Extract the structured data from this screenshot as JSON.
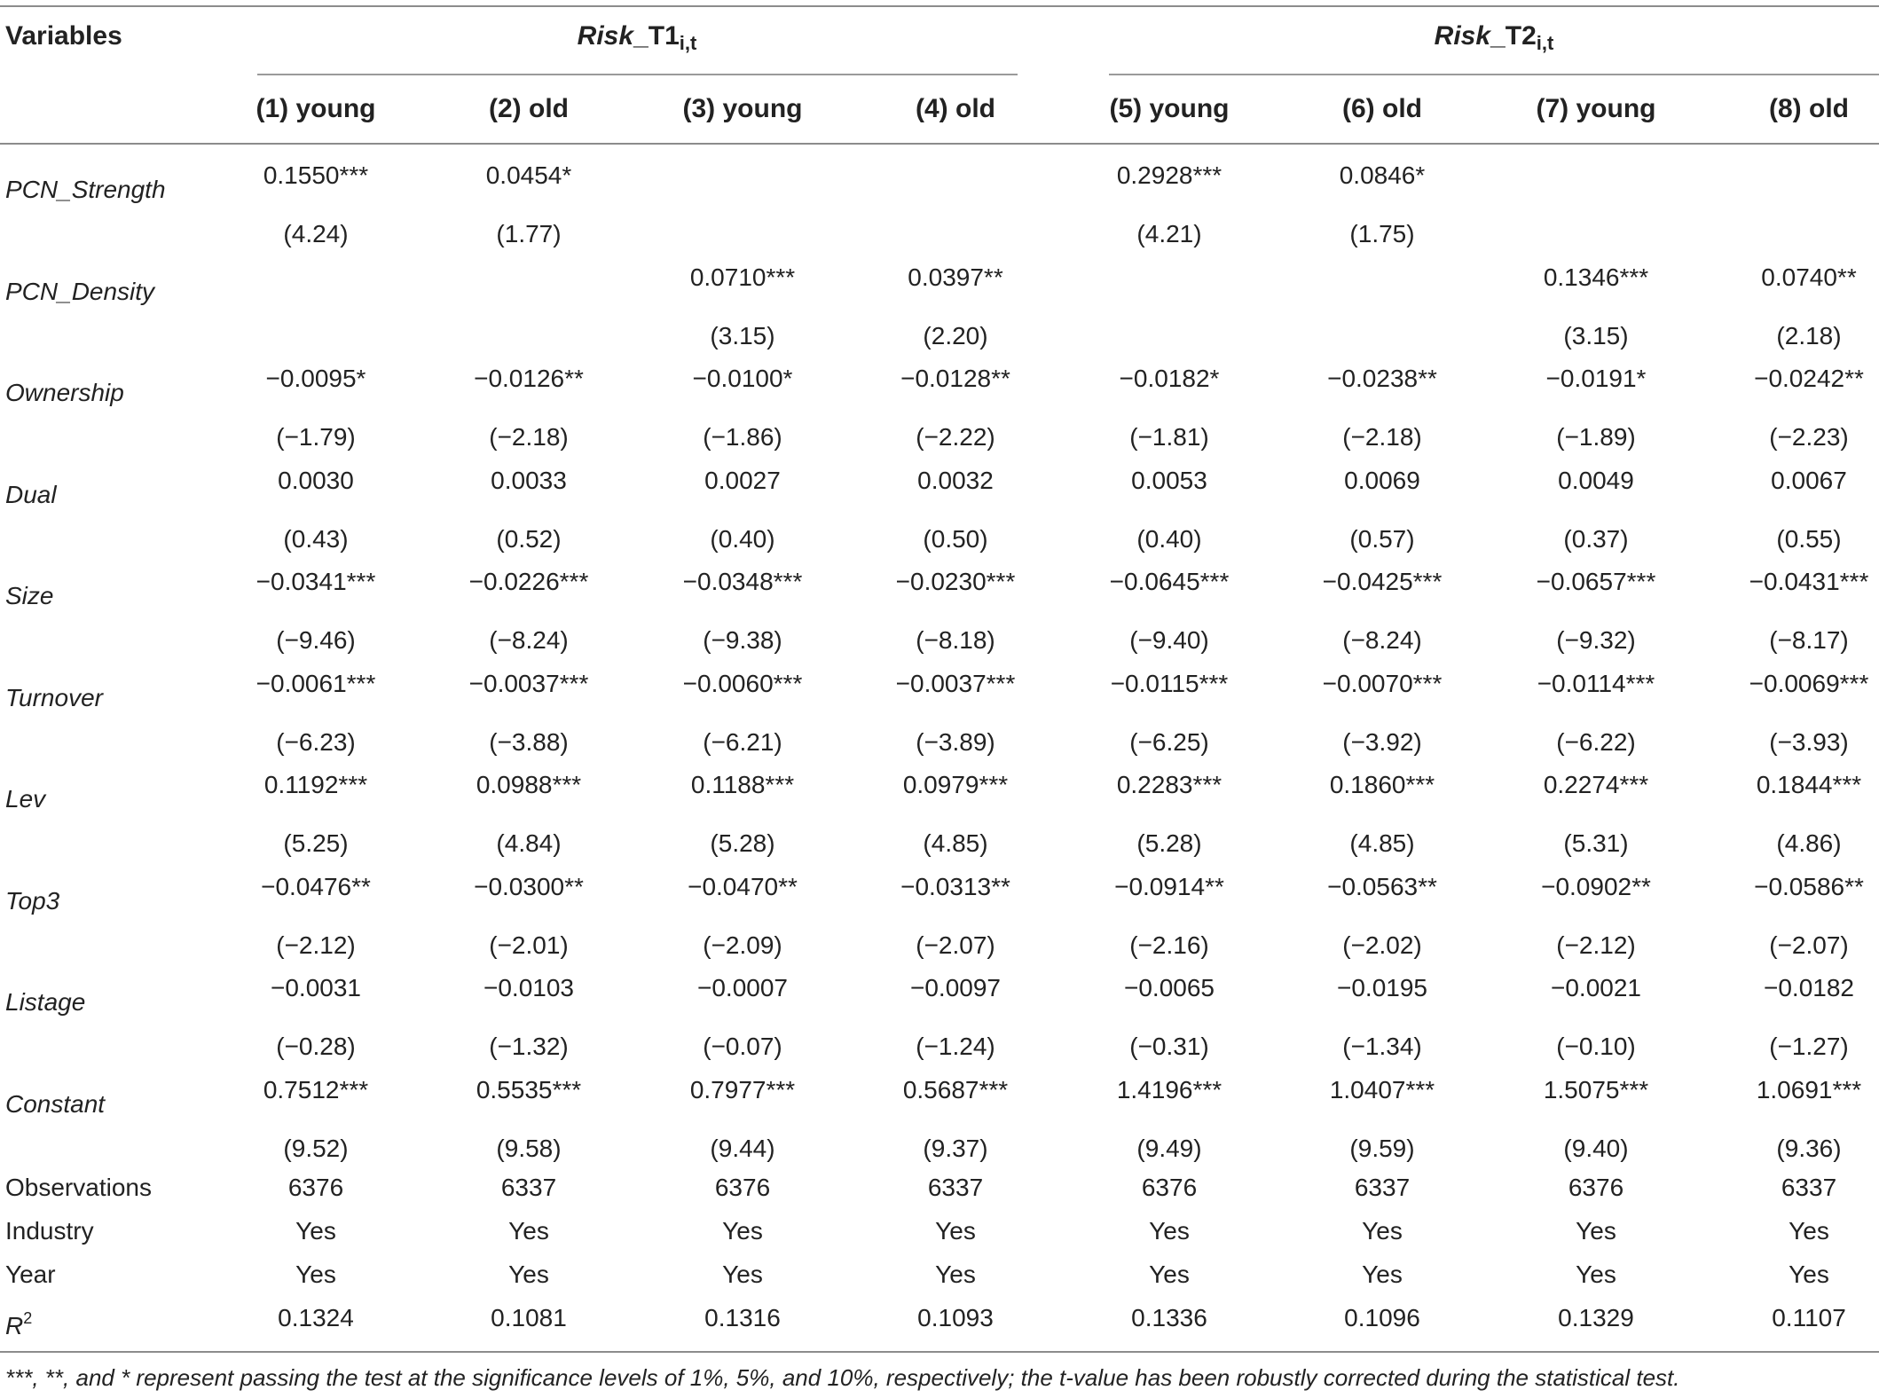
{
  "header": {
    "variables_label": "Variables",
    "group1": {
      "prefix": "Risk",
      "suffix": "_T1",
      "subscript": "i,t"
    },
    "group2": {
      "prefix": "Risk",
      "suffix": "_T2",
      "subscript": "i,t"
    },
    "columns": [
      "(1) young",
      "(2) old",
      "(3) young",
      "(4) old",
      "(5) young",
      "(6) old",
      "(7) young",
      "(8) old"
    ]
  },
  "rows": [
    {
      "label": "PCN_Strength",
      "coef": [
        "0.1550***",
        "0.0454*",
        "",
        "",
        "0.2928***",
        "0.0846*",
        "",
        ""
      ],
      "tval": [
        "(4.24)",
        "(1.77)",
        "",
        "",
        "(4.21)",
        "(1.75)",
        "",
        ""
      ]
    },
    {
      "label": "PCN_Density",
      "coef": [
        "",
        "",
        "0.0710***",
        "0.0397**",
        "",
        "",
        "0.1346***",
        "0.0740**"
      ],
      "tval": [
        "",
        "",
        "(3.15)",
        "(2.20)",
        "",
        "",
        "(3.15)",
        "(2.18)"
      ]
    },
    {
      "label": "Ownership",
      "coef": [
        "−0.0095*",
        "−0.0126**",
        "−0.0100*",
        "−0.0128**",
        "−0.0182*",
        "−0.0238**",
        "−0.0191*",
        "−0.0242**"
      ],
      "tval": [
        "(−1.79)",
        "(−2.18)",
        "(−1.86)",
        "(−2.22)",
        "(−1.81)",
        "(−2.18)",
        "(−1.89)",
        "(−2.23)"
      ]
    },
    {
      "label": "Dual",
      "coef": [
        "0.0030",
        "0.0033",
        "0.0027",
        "0.0032",
        "0.0053",
        "0.0069",
        "0.0049",
        "0.0067"
      ],
      "tval": [
        "(0.43)",
        "(0.52)",
        "(0.40)",
        "(0.50)",
        "(0.40)",
        "(0.57)",
        "(0.37)",
        "(0.55)"
      ]
    },
    {
      "label": "Size",
      "coef": [
        "−0.0341***",
        "−0.0226***",
        "−0.0348***",
        "−0.0230***",
        "−0.0645***",
        "−0.0425***",
        "−0.0657***",
        "−0.0431***"
      ],
      "tval": [
        "(−9.46)",
        "(−8.24)",
        "(−9.38)",
        "(−8.18)",
        "(−9.40)",
        "(−8.24)",
        "(−9.32)",
        "(−8.17)"
      ]
    },
    {
      "label": "Turnover",
      "coef": [
        "−0.0061***",
        "−0.0037***",
        "−0.0060***",
        "−0.0037***",
        "−0.0115***",
        "−0.0070***",
        "−0.0114***",
        "−0.0069***"
      ],
      "tval": [
        "(−6.23)",
        "(−3.88)",
        "(−6.21)",
        "(−3.89)",
        "(−6.25)",
        "(−3.92)",
        "(−6.22)",
        "(−3.93)"
      ]
    },
    {
      "label": "Lev",
      "coef": [
        "0.1192***",
        "0.0988***",
        "0.1188***",
        "0.0979***",
        "0.2283***",
        "0.1860***",
        "0.2274***",
        "0.1844***"
      ],
      "tval": [
        "(5.25)",
        "(4.84)",
        "(5.28)",
        "(4.85)",
        "(5.28)",
        "(4.85)",
        "(5.31)",
        "(4.86)"
      ]
    },
    {
      "label": "Top3",
      "coef": [
        "−0.0476**",
        "−0.0300**",
        "−0.0470**",
        "−0.0313**",
        "−0.0914**",
        "−0.0563**",
        "−0.0902**",
        "−0.0586**"
      ],
      "tval": [
        "(−2.12)",
        "(−2.01)",
        "(−2.09)",
        "(−2.07)",
        "(−2.16)",
        "(−2.02)",
        "(−2.12)",
        "(−2.07)"
      ]
    },
    {
      "label": "Listage",
      "coef": [
        "−0.0031",
        "−0.0103",
        "−0.0007",
        "−0.0097",
        "−0.0065",
        "−0.0195",
        "−0.0021",
        "−0.0182"
      ],
      "tval": [
        "(−0.28)",
        "(−1.32)",
        "(−0.07)",
        "(−1.24)",
        "(−0.31)",
        "(−1.34)",
        "(−0.10)",
        "(−1.27)"
      ]
    },
    {
      "label": "Constant",
      "coef": [
        "0.7512***",
        "0.5535***",
        "0.7977***",
        "0.5687***",
        "1.4196***",
        "1.0407***",
        "1.5075***",
        "1.0691***"
      ],
      "tval": [
        "(9.52)",
        "(9.58)",
        "(9.44)",
        "(9.37)",
        "(9.49)",
        "(9.59)",
        "(9.40)",
        "(9.36)"
      ]
    }
  ],
  "stats": [
    {
      "label": "Observations",
      "values": [
        "6376",
        "6337",
        "6376",
        "6337",
        "6376",
        "6337",
        "6376",
        "6337"
      ]
    },
    {
      "label": "Industry",
      "values": [
        "Yes",
        "Yes",
        "Yes",
        "Yes",
        "Yes",
        "Yes",
        "Yes",
        "Yes"
      ]
    },
    {
      "label": "Year",
      "values": [
        "Yes",
        "Yes",
        "Yes",
        "Yes",
        "Yes",
        "Yes",
        "Yes",
        "Yes"
      ]
    }
  ],
  "r2": {
    "label": "R",
    "sup": "2",
    "values": [
      "0.1324",
      "0.1081",
      "0.1316",
      "0.1093",
      "0.1336",
      "0.1096",
      "0.1329",
      "0.1107"
    ]
  },
  "footnote": "***, **, and * represent passing the test at the significance levels of 1%, 5%, and 10%, respectively; the t-value has been robustly corrected during the statistical test."
}
